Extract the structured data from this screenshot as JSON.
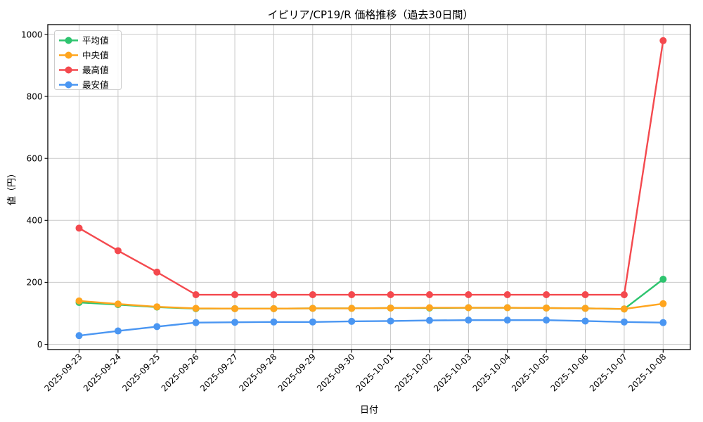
{
  "chart_data": {
    "type": "line",
    "title": "イピリア/CP19/R 価格推移（過去30日間）",
    "xlabel": "日付",
    "ylabel": "値（円）",
    "grid": true,
    "legend_position": "upper left",
    "ylim": [
      0,
      1000
    ],
    "yticks": [
      0,
      200,
      400,
      600,
      800,
      1000
    ],
    "x": [
      "2025-09-23",
      "2025-09-24",
      "2025-09-25",
      "2025-09-26",
      "2025-09-27",
      "2025-09-28",
      "2025-09-29",
      "2025-09-30",
      "2025-10-01",
      "2025-10-02",
      "2025-10-03",
      "2025-10-04",
      "2025-10-05",
      "2025-10-06",
      "2025-10-07",
      "2025-10-08"
    ],
    "series": [
      {
        "name": "平均値",
        "key": "avg",
        "color": "#2ec46f",
        "values": [
          135,
          128,
          120,
          115,
          115,
          115,
          116,
          116,
          117,
          117,
          118,
          118,
          117,
          116,
          114,
          210
        ]
      },
      {
        "name": "中央値",
        "key": "median",
        "color": "#ffa51e",
        "values": [
          140,
          130,
          121,
          116,
          115,
          115,
          116,
          116,
          117,
          118,
          118,
          118,
          117,
          116,
          114,
          131
        ]
      },
      {
        "name": "最高値",
        "key": "max",
        "color": "#f4494e",
        "values": [
          375,
          302,
          233,
          160,
          160,
          160,
          160,
          160,
          160,
          160,
          160,
          160,
          160,
          160,
          160,
          980
        ]
      },
      {
        "name": "最安値",
        "key": "min",
        "color": "#4a96f2",
        "values": [
          28,
          43,
          57,
          70,
          71,
          72,
          72,
          74,
          75,
          77,
          78,
          78,
          78,
          75,
          72,
          70
        ]
      }
    ],
    "grid_color": "#c9c9c9",
    "spine_color": "#000000"
  }
}
